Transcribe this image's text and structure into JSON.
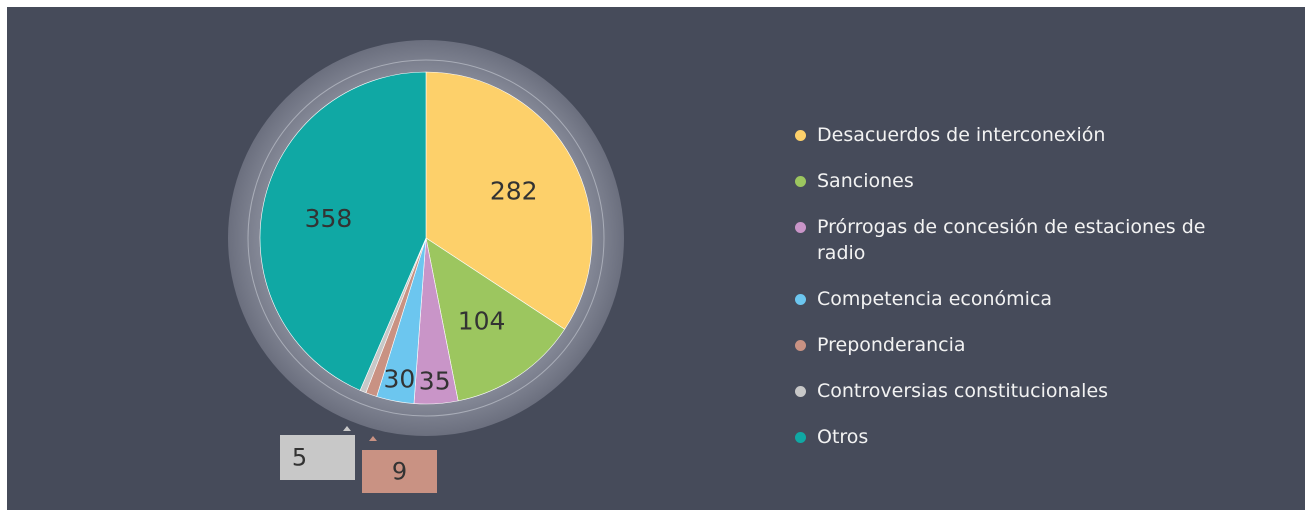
{
  "chart_data": {
    "type": "pie",
    "categories": [
      "Desacuerdos de interconexión",
      "Sanciones",
      "Prórrogas de concesión de estaciones de radio",
      "Competencia económica",
      "Preponderancia",
      "Controversias constitucionales",
      "Otros"
    ],
    "values": [
      282,
      104,
      35,
      30,
      9,
      5,
      358
    ],
    "colors": [
      "#fdd06a",
      "#9cc65f",
      "#c995c8",
      "#6cc6ef",
      "#c99283",
      "#c8c8c8",
      "#10a8a4"
    ]
  }
}
